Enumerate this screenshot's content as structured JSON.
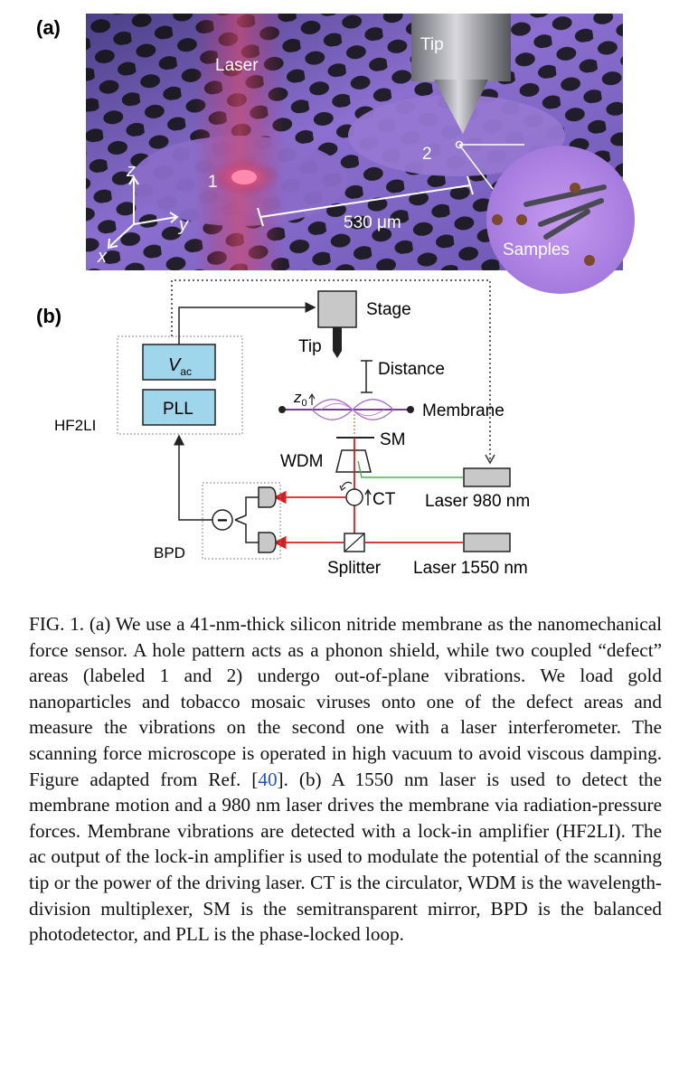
{
  "panel_a": {
    "label": "(a)",
    "laser": "Laser",
    "tip": "Tip",
    "defect1": "1",
    "defect2": "2",
    "axis_z": "z",
    "axis_y": "y",
    "axis_x": "x",
    "distance": "530 μm",
    "samples": "Samples"
  },
  "panel_b": {
    "label": "(b)",
    "stage": "Stage",
    "tip": "Tip",
    "distance": "Distance",
    "z0": "z",
    "z0_sub": "0",
    "membrane": "Membrane",
    "sm": "SM",
    "wdm": "WDM",
    "ct": "CT",
    "laser980": "Laser 980 nm",
    "laser1550": "Laser 1550 nm",
    "splitter": "Splitter",
    "bpd": "BPD",
    "hf2li": "HF2LI",
    "vac": "V",
    "vac_sub": "ac",
    "pll": "PLL",
    "minus": "−"
  },
  "caption": {
    "part1": "FIG. 1.   (a) We use a 41-nm-thick silicon nitride membrane as the nanomechanical force sensor. A hole pattern acts as a phonon shield, while two coupled “defect” areas (labeled 1 and 2) undergo out-of-plane vibrations. We load gold nanoparticles and tobacco mosaic viruses onto one of the defect areas and measure the vibrations on the second one with a laser interferometer. The scanning force microscope is operated in high vacuum to avoid viscous damping. Figure adapted from Ref. [",
    "ref": "40",
    "part2": "]. (b) A 1550 nm laser is used to detect the membrane motion and a 980 nm laser drives the membrane via radiation-pressure forces. Membrane vibrations are detected with a lock-in amplifier (HF2LI). The ac output of the lock-in amplifier is used to modulate the potential of the scanning tip or the power of the driving laser. CT is the circulator, WDM is the wavelength-division multiplexer, SM is the semitransparent mirror, BPD is the balanced photodetector, and PLL is the phase-locked loop."
  }
}
